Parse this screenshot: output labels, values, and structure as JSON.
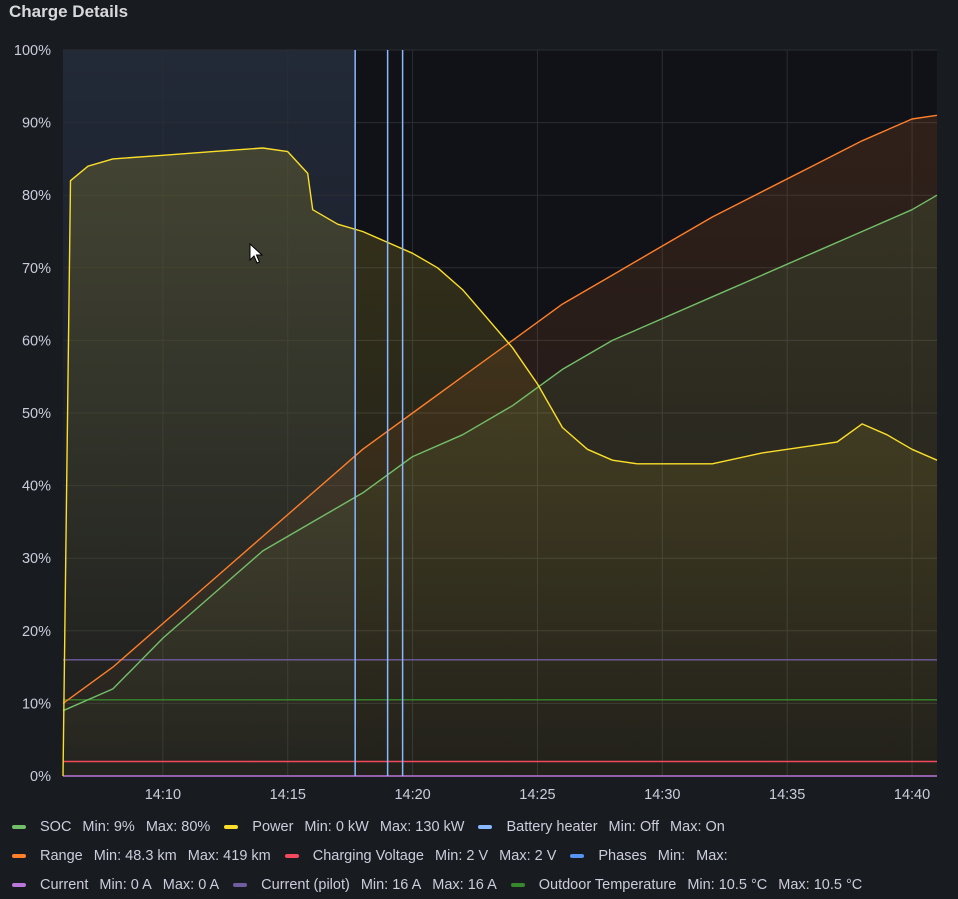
{
  "panel": {
    "title": "Charge Details"
  },
  "chart_data": {
    "type": "line",
    "title": "Charge Details",
    "x_start": "14:06",
    "x_end": "14:41",
    "x_ticks": [
      "14:10",
      "14:15",
      "14:20",
      "14:25",
      "14:30",
      "14:35",
      "14:40"
    ],
    "y_ticks": [
      "0%",
      "10%",
      "20%",
      "30%",
      "40%",
      "50%",
      "60%",
      "70%",
      "80%",
      "90%",
      "100%"
    ],
    "ylim": [
      0,
      100
    ],
    "grid": true,
    "legend_position": "bottom",
    "series": [
      {
        "name": "SOC",
        "color": "#73bf69",
        "x": [
          "14:06",
          "14:08",
          "14:10",
          "14:12",
          "14:14",
          "14:16",
          "14:18",
          "14:20",
          "14:22",
          "14:24",
          "14:26",
          "14:28",
          "14:30",
          "14:32",
          "14:34",
          "14:36",
          "14:38",
          "14:40",
          "14:41"
        ],
        "values": [
          9,
          12,
          19,
          25,
          31,
          35,
          39,
          44,
          47,
          51,
          56,
          60,
          63,
          66,
          69,
          72,
          75,
          78,
          80
        ]
      },
      {
        "name": "Power",
        "color": "#fade2a",
        "x": [
          "14:06",
          "14:06.3",
          "14:07",
          "14:08",
          "14:10",
          "14:12",
          "14:14",
          "14:15",
          "14:15.8",
          "14:16",
          "14:17",
          "14:18",
          "14:19",
          "14:20",
          "14:21",
          "14:22",
          "14:23",
          "14:24",
          "14:25",
          "14:26",
          "14:27",
          "14:28",
          "14:29",
          "14:30",
          "14:32",
          "14:34",
          "14:35",
          "14:36",
          "14:37",
          "14:38",
          "14:39",
          "14:40",
          "14:41"
        ],
        "values": [
          0,
          82,
          84,
          85,
          85.5,
          86,
          86.5,
          86,
          83,
          78,
          76,
          75,
          73.5,
          72,
          70,
          67,
          63,
          59,
          54,
          48,
          45,
          43.5,
          43,
          43,
          43,
          44.5,
          45,
          45.5,
          46,
          48.5,
          47,
          45,
          43.5
        ]
      },
      {
        "name": "Battery heater",
        "color": "#8ab8ff",
        "x": [
          "14:17.7",
          "14:19",
          "14:19.6"
        ],
        "values": [
          100,
          100,
          100
        ]
      },
      {
        "name": "Range",
        "color": "#ff7f2a",
        "x": [
          "14:06",
          "14:08",
          "14:10",
          "14:12",
          "14:14",
          "14:16",
          "14:18",
          "14:20",
          "14:22",
          "14:24",
          "14:26",
          "14:28",
          "14:30",
          "14:32",
          "14:34",
          "14:36",
          "14:38",
          "14:40",
          "14:41"
        ],
        "values": [
          10,
          15,
          21,
          27,
          33,
          39,
          45,
          50,
          55,
          60,
          65,
          69,
          73,
          77,
          80.5,
          84,
          87.5,
          90.5,
          91
        ]
      },
      {
        "name": "Charging Voltage",
        "color": "#f2495c",
        "x": [
          "14:06",
          "14:41"
        ],
        "values": [
          2,
          2
        ]
      },
      {
        "name": "Phases",
        "color": "#5794f2",
        "x": [],
        "values": []
      },
      {
        "name": "Current",
        "color": "#b877d9",
        "x": [
          "14:06",
          "14:41"
        ],
        "values": [
          0,
          0
        ]
      },
      {
        "name": "Current (pilot)",
        "color": "#705da0",
        "x": [
          "14:06",
          "14:41"
        ],
        "values": [
          16,
          16
        ]
      },
      {
        "name": "Outdoor Temperature",
        "color": "#37872d",
        "x": [
          "14:06",
          "14:41"
        ],
        "values": [
          10.5,
          10.5
        ]
      }
    ]
  },
  "legend": {
    "rows": [
      [
        {
          "name": "SOC",
          "color": "#73bf69",
          "min": "Min: 9%",
          "max": "Max: 80%"
        },
        {
          "name": "Power",
          "color": "#fade2a",
          "min": "Min: 0 kW",
          "max": "Max: 130 kW"
        },
        {
          "name": "Battery heater",
          "color": "#8ab8ff",
          "min": "Min: Off",
          "max": "Max: On"
        }
      ],
      [
        {
          "name": "Range",
          "color": "#ff7f2a",
          "min": "Min: 48.3 km",
          "max": "Max: 419 km"
        },
        {
          "name": "Charging Voltage",
          "color": "#f2495c",
          "min": "Min: 2 V",
          "max": "Max: 2 V"
        },
        {
          "name": "Phases",
          "color": "#5794f2",
          "min": "Min:",
          "max": "Max:"
        }
      ],
      [
        {
          "name": "Current",
          "color": "#b877d9",
          "min": "Min: 0 A",
          "max": "Max: 0 A"
        },
        {
          "name": "Current (pilot)",
          "color": "#705da0",
          "min": "Min: 16 A",
          "max": "Max: 16 A"
        },
        {
          "name": "Outdoor Temperature",
          "color": "#37872d",
          "min": "Min: 10.5 °C",
          "max": "Max: 10.5 °C"
        }
      ]
    ]
  }
}
